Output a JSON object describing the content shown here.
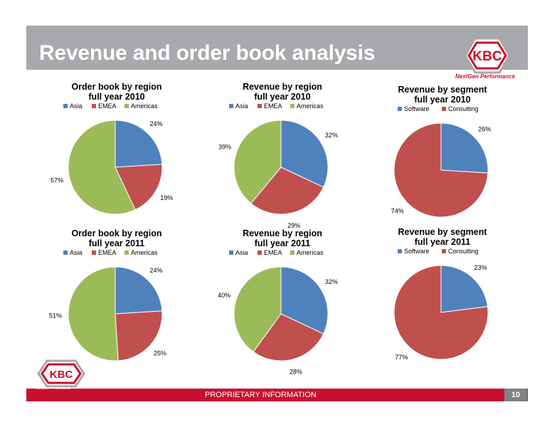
{
  "header": {
    "title": "Revenue and order book analysis",
    "logo_text": "KBC",
    "tagline": "NextGen Performance"
  },
  "footer": {
    "label": "PROPRIETARY INFORMATION",
    "page_number": "10",
    "tagline": "NextGen Performance"
  },
  "colors": {
    "asia": "#4f81bd",
    "emea": "#c0504d",
    "americas": "#9bbb59",
    "software": "#4f81bd",
    "consulting": "#c0504d",
    "brand_red": "#c8102e",
    "header_gray": "#a7a9ac"
  },
  "chart_data": [
    {
      "type": "pie",
      "title": "Order book by region full year 2010",
      "title_lines": [
        "Order book by region",
        "full year 2010"
      ],
      "categories": [
        "Asia",
        "EMEA",
        "Americas"
      ],
      "values": [
        24,
        19,
        57
      ],
      "data_labels": [
        "24%",
        "19%",
        "57%"
      ],
      "legend": "top"
    },
    {
      "type": "pie",
      "title": "Revenue by region full year 2010",
      "title_lines": [
        "Revenue by region",
        "full year 2010"
      ],
      "categories": [
        "Asia",
        "EMEA",
        "Americas"
      ],
      "values": [
        32,
        29,
        39
      ],
      "data_labels": [
        "32%",
        "29%",
        "39%"
      ],
      "legend": "top"
    },
    {
      "type": "pie",
      "title": "Revenue by segment full year 2010",
      "title_lines": [
        "Revenue by segment",
        "full year 2010"
      ],
      "categories": [
        "Software",
        "Consulting"
      ],
      "values": [
        26,
        74
      ],
      "data_labels": [
        "26%",
        "74%"
      ],
      "legend": "top"
    },
    {
      "type": "pie",
      "title": "Order book by region full year 2011",
      "title_lines": [
        "Order book by region",
        "full year 2011"
      ],
      "categories": [
        "Asia",
        "EMEA",
        "Americas"
      ],
      "values": [
        24,
        25,
        51
      ],
      "data_labels": [
        "24%",
        "25%",
        "51%"
      ],
      "legend": "top"
    },
    {
      "type": "pie",
      "title": "Revenue by region full year 2011",
      "title_lines": [
        "Revenue by region",
        "full year 2011"
      ],
      "categories": [
        "Asia",
        "EMEA",
        "Americas"
      ],
      "values": [
        32,
        28,
        40
      ],
      "data_labels": [
        "32%",
        "28%",
        "40%"
      ],
      "legend": "top"
    },
    {
      "type": "pie",
      "title": "Revenue by segment full year 2011",
      "title_lines": [
        "Revenue by segment",
        "full year 2011"
      ],
      "categories": [
        "Software",
        "Consulting"
      ],
      "values": [
        23,
        77
      ],
      "data_labels": [
        "23%",
        "77%"
      ],
      "legend": "top"
    }
  ]
}
